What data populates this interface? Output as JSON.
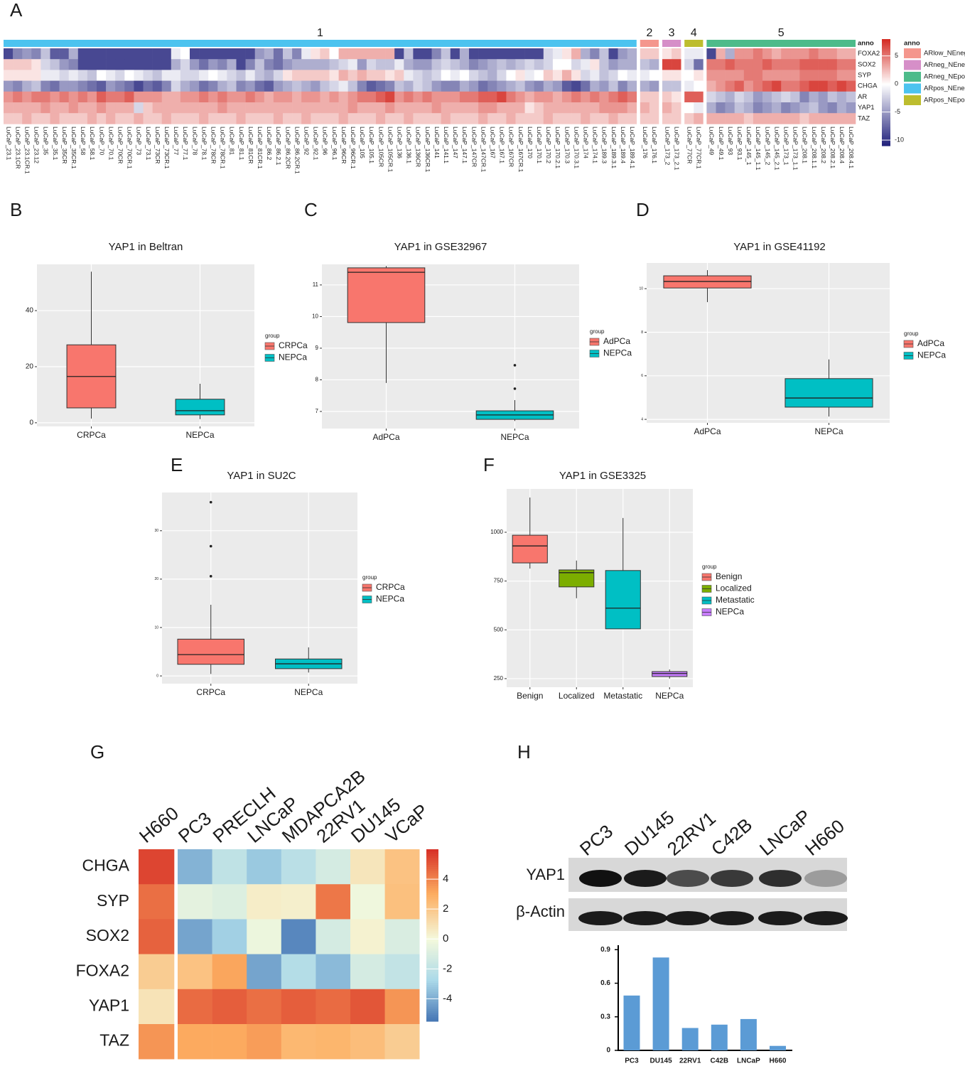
{
  "chart_data": [
    {
      "type": "heatmap",
      "panel": "A",
      "anno_label": "anno",
      "legend_title": "anno",
      "rows": [
        "FOXA2",
        "SOX2",
        "SYP",
        "CHGA",
        "AR",
        "YAP1",
        "TAZ"
      ],
      "legend": [
        {
          "name": "ARlow_NEneg",
          "color": "#f4968d"
        },
        {
          "name": "ARneg_NEneg",
          "color": "#d68fc8"
        },
        {
          "name": "ARneg_NEpos",
          "color": "#4dbb8a"
        },
        {
          "name": "ARpos_NEneg",
          "color": "#4cc3ef"
        },
        {
          "name": "ARpos_NEpos",
          "color": "#bdbd2e"
        }
      ],
      "groups": [
        {
          "label": "1",
          "anno": "ARpos_NEneg",
          "samples": [
            "LuCaP_23.1",
            "LuCaP_23.1CR",
            "LuCaP_23.1CR.1",
            "LuCaP_23.12",
            "LuCaP_35",
            "LuCaP_35.1",
            "LuCaP_35CR",
            "LuCaP_35CR.1",
            "LuCaP_58",
            "LuCaP_58.1",
            "LuCaP_70",
            "LuCaP_70.1",
            "LuCaP_70CR",
            "LuCaP_70CR.1",
            "LuCaP_73",
            "LuCaP_73.1",
            "LuCaP_73CR",
            "LuCaP_73CR.1",
            "LuCaP_77",
            "LuCaP_77.1",
            "LuCaP_78",
            "LuCaP_78.1",
            "LuCaP_78CR",
            "LuCaP_78CR.1",
            "LuCaP_81",
            "LuCaP_81.1",
            "LuCaP_81CR",
            "LuCaP_81CR.1",
            "LuCaP_86.2",
            "LuCaP_86.2.1",
            "LuCaP_86.2CR",
            "LuCaP_86.2CR.1",
            "LuCaP_92",
            "LuCaP_92.1",
            "LuCaP_96",
            "LuCaP_96.1",
            "LuCaP_96CR",
            "LuCaP_96CR.1",
            "LuCaP_105",
            "LuCaP_105.1",
            "LuCaP_105CR",
            "LuCaP_105CR.1",
            "LuCaP_136",
            "LuCaP_136.1",
            "LuCaP_136CR",
            "LuCaP_136CR.1",
            "LuCaP_141",
            "LuCaP_141.1",
            "LuCaP_147",
            "LuCaP_147.1",
            "LuCaP_147CR",
            "LuCaP_147CR.1",
            "LuCaP_167",
            "LuCaP_167.1",
            "LuCaP_167CR",
            "LuCaP_167CR.1",
            "LuCaP_170",
            "LuCaP_170.1",
            "LuCaP_170.2",
            "LuCaP_170.2.1",
            "LuCaP_170.3",
            "LuCaP_170.3.1",
            "LuCaP_174",
            "LuCaP_174.1",
            "LuCaP_189.3",
            "LuCaP_189.3.1",
            "LuCaP_189.4",
            "LuCaP_189.4.1"
          ]
        },
        {
          "label": "2",
          "anno": "ARlow_NEneg",
          "samples": [
            "LuCaP_176",
            "LuCaP_176.1"
          ]
        },
        {
          "label": "3",
          "anno": "ARneg_NEneg",
          "samples": [
            "LuCaP_173_2",
            "LuCaP_173_2.1"
          ]
        },
        {
          "label": "4",
          "anno": "ARpos_NEpos",
          "samples": [
            "LuCaP_77CR",
            "LuCaP_77CR.1"
          ]
        },
        {
          "label": "5",
          "anno": "ARneg_NEpos",
          "samples": [
            "LuCaP_49",
            "LuCaP_49.1",
            "LuCaP_93",
            "LuCaP_93.1",
            "LuCaP_145_1",
            "LuCaP_145_1.1",
            "LuCaP_145_2",
            "LuCaP_145_2.1",
            "LuCaP_173_1",
            "LuCaP_173_1.1",
            "LuCaP_208.1",
            "LuCaP_208.1.1",
            "LuCaP_208.2",
            "LuCaP_208.2.1",
            "LuCaP_208.4",
            "LuCaP_208.4.1"
          ]
        }
      ],
      "values": [
        [
          -9,
          -6,
          -5,
          -6,
          -3,
          -8,
          -8,
          -4,
          -9,
          -9,
          -9,
          -9,
          -9,
          -9,
          -9,
          -9,
          -9,
          -9,
          -1,
          0,
          -9,
          -9,
          -9,
          -9,
          -9,
          -9,
          -9,
          -5,
          -4,
          -7,
          -3,
          -6,
          -1,
          1,
          2,
          0,
          3,
          3,
          3,
          3,
          3,
          3,
          -9,
          -3,
          -9,
          -9,
          -6,
          -3,
          -9,
          -4,
          -9,
          -9,
          -9,
          -9,
          -9,
          -9,
          -9,
          -9,
          -2,
          -1,
          1,
          3,
          -4,
          -6,
          -3,
          -9,
          -5,
          -4,
          2,
          2,
          1,
          2,
          -1,
          -1,
          -9,
          3,
          -4,
          4,
          4,
          5,
          4,
          3,
          4,
          4,
          4,
          5,
          4,
          4,
          3,
          3
        ],
        [
          2,
          2,
          2,
          1,
          -2,
          -3,
          -5,
          -6,
          -9,
          -9,
          -9,
          -9,
          -9,
          -9,
          -9,
          -9,
          -9,
          -9,
          -4,
          -2,
          -5,
          -7,
          -5,
          -6,
          -4,
          -9,
          -6,
          -3,
          -6,
          -7,
          -5,
          -4,
          -4,
          -4,
          -4,
          -3,
          -2,
          -1,
          -5,
          -2,
          -3,
          -3,
          -1,
          -4,
          -5,
          -5,
          -3,
          -2,
          -3,
          -4,
          -6,
          -5,
          -4,
          -3,
          -4,
          -3,
          -2,
          -3,
          -2,
          0,
          0,
          -2,
          -1,
          1,
          -3,
          -5,
          -4,
          -4,
          -3,
          -4,
          7,
          7,
          -2,
          -7,
          5,
          5,
          6,
          5,
          5,
          5,
          6,
          5,
          5,
          5,
          6,
          6,
          6,
          6,
          5,
          5
        ],
        [
          1,
          1,
          1,
          1,
          -1,
          -1,
          -2,
          -1,
          -2,
          -3,
          0,
          -1,
          -2,
          0,
          -1,
          -2,
          -3,
          -1,
          -1,
          -2,
          -2,
          -1,
          0,
          -1,
          -2,
          -3,
          -1,
          -3,
          -4,
          -2,
          1,
          2,
          2,
          2,
          2,
          1,
          3,
          2,
          3,
          2,
          2,
          1,
          2,
          -1,
          -2,
          -3,
          -2,
          0,
          -1,
          0,
          -2,
          -3,
          -4,
          -2,
          0,
          1,
          -1,
          0,
          2,
          1,
          3,
          1,
          -2,
          -1,
          -3,
          -2,
          0,
          -1,
          -1,
          0,
          1,
          1,
          0,
          1,
          4,
          4,
          4,
          4,
          5,
          5,
          4,
          4,
          4,
          4,
          5,
          5,
          5,
          5,
          4,
          4
        ],
        [
          -5,
          -6,
          -4,
          -3,
          -6,
          -7,
          -5,
          -5,
          -6,
          -7,
          -8,
          -5,
          -6,
          -7,
          -9,
          -7,
          -8,
          -6,
          -2,
          -4,
          -5,
          -7,
          -6,
          -4,
          -3,
          -6,
          -5,
          -7,
          -8,
          -5,
          -4,
          -3,
          -4,
          -5,
          -3,
          -2,
          -1,
          -3,
          -6,
          -8,
          -7,
          -6,
          -3,
          -4,
          -2,
          -3,
          -5,
          -6,
          -6,
          -4,
          -5,
          -7,
          -6,
          -5,
          -4,
          -3,
          -5,
          -6,
          -4,
          -5,
          -8,
          -9,
          -7,
          -4,
          -5,
          -3,
          -6,
          -4,
          -4,
          -5,
          -3,
          -3,
          -1,
          0,
          3,
          4,
          5,
          6,
          4,
          5,
          6,
          7,
          5,
          5,
          6,
          7,
          7,
          6,
          7,
          6
        ],
        [
          4,
          5,
          4,
          5,
          5,
          4,
          5,
          4,
          5,
          4,
          6,
          5,
          5,
          6,
          4,
          4,
          4,
          3,
          3,
          4,
          4,
          5,
          4,
          5,
          4,
          4,
          5,
          4,
          3,
          4,
          4,
          3,
          4,
          4,
          3,
          4,
          3,
          4,
          5,
          5,
          6,
          7,
          4,
          5,
          4,
          5,
          4,
          4,
          4,
          5,
          5,
          6,
          6,
          7,
          5,
          4,
          3,
          4,
          4,
          3,
          4,
          5,
          4,
          5,
          4,
          5,
          6,
          5,
          2,
          2,
          2,
          1,
          6,
          6,
          -2,
          -3,
          -4,
          -2,
          -3,
          -5,
          -4,
          -3,
          -2,
          -3,
          -6,
          -4,
          -5,
          -3,
          -4,
          -3
        ],
        [
          3,
          3,
          3,
          3,
          4,
          3,
          3,
          4,
          3,
          3,
          4,
          3,
          3,
          3,
          -2,
          2,
          3,
          3,
          3,
          3,
          3,
          3,
          3,
          4,
          3,
          3,
          3,
          3,
          3,
          3,
          3,
          3,
          3,
          3,
          3,
          3,
          3,
          4,
          3,
          3,
          3,
          4,
          3,
          3,
          3,
          3,
          4,
          3,
          3,
          3,
          3,
          4,
          4,
          3,
          3,
          3,
          1,
          2,
          3,
          3,
          3,
          3,
          3,
          3,
          4,
          4,
          4,
          3,
          3,
          2,
          3,
          2,
          0,
          -1,
          -4,
          -6,
          -5,
          -3,
          -4,
          -6,
          -5,
          -4,
          -6,
          -5,
          -4,
          -3,
          -5,
          -6,
          -4,
          -5
        ],
        [
          2,
          2,
          3,
          2,
          2,
          3,
          2,
          2,
          2,
          3,
          2,
          3,
          2,
          2,
          3,
          2,
          2,
          3,
          2,
          2,
          2,
          3,
          2,
          2,
          2,
          3,
          2,
          2,
          2,
          3,
          2,
          2,
          3,
          2,
          2,
          2,
          3,
          2,
          2,
          2,
          3,
          2,
          2,
          3,
          2,
          2,
          2,
          3,
          2,
          2,
          2,
          3,
          2,
          2,
          3,
          2,
          2,
          2,
          3,
          2,
          2,
          2,
          3,
          2,
          2,
          3,
          2,
          2,
          2,
          2,
          2,
          2,
          2,
          3,
          3,
          3,
          3,
          3,
          2,
          3,
          3,
          3,
          3,
          3,
          2,
          3,
          3,
          3,
          3,
          3
        ]
      ],
      "clim": [
        -11,
        8
      ],
      "cticks": [
        5,
        0,
        -5,
        -10
      ],
      "colors": [
        "#1f1f7a",
        "#ffffff",
        "#d42a22"
      ]
    },
    {
      "type": "box",
      "panel": "B",
      "title": "YAP1 in Beltran",
      "legend_title": "group",
      "categories": [
        "CRPCa",
        "NEPCa"
      ],
      "colors": [
        "#f8766d",
        "#00bfc4"
      ],
      "boxes": [
        {
          "min": 1.5,
          "q1": 5.3,
          "median": 16.5,
          "q3": 27.8,
          "max": 53.9,
          "outliers": []
        },
        {
          "min": 1.3,
          "q1": 2.8,
          "median": 4.3,
          "q3": 8.4,
          "max": 13.9,
          "outliers": []
        }
      ],
      "ylim": [
        -1.3,
        56.5
      ],
      "yticks": [
        0,
        20,
        40
      ]
    },
    {
      "type": "box",
      "panel": "C",
      "title": "YAP1 in GSE32967",
      "legend_title": "group",
      "categories": [
        "AdPCa",
        "NEPCa"
      ],
      "colors": [
        "#f8766d",
        "#00bfc4"
      ],
      "boxes": [
        {
          "min": 7.9,
          "q1": 9.81,
          "median": 11.4,
          "q3": 11.54,
          "max": 11.6,
          "outliers": []
        },
        {
          "min": 6.7,
          "q1": 6.75,
          "median": 6.89,
          "q3": 7.02,
          "max": 7.36,
          "outliers": [
            8.46,
            7.72
          ]
        }
      ],
      "ylim": [
        6.46,
        11.65
      ],
      "yticks": [
        7,
        8,
        9,
        10,
        11
      ]
    },
    {
      "type": "box",
      "panel": "D",
      "title": "YAP1 in GSE41192",
      "legend_title": "group",
      "categories": [
        "AdPCa",
        "NEPCa"
      ],
      "colors": [
        "#f8766d",
        "#00bfc4"
      ],
      "boxes": [
        {
          "min": 9.38,
          "q1": 10.03,
          "median": 10.33,
          "q3": 10.59,
          "max": 10.85,
          "outliers": []
        },
        {
          "min": 4.13,
          "q1": 4.56,
          "median": 4.98,
          "q3": 5.87,
          "max": 6.75,
          "outliers": []
        }
      ],
      "ylim": [
        3.84,
        11.18
      ],
      "yticks": [
        4,
        6,
        8,
        10
      ]
    },
    {
      "type": "box",
      "panel": "E",
      "title": "YAP1 in SU2C",
      "legend_title": "group",
      "categories": [
        "CRPCa",
        "NEPCa"
      ],
      "colors": [
        "#f8766d",
        "#00bfc4"
      ],
      "boxes": [
        {
          "min": 0.4,
          "q1": 2.4,
          "median": 4.4,
          "q3": 7.6,
          "max": 14.7,
          "outliers": [
            35.9,
            26.8,
            20.6
          ]
        },
        {
          "min": 0.7,
          "q1": 1.5,
          "median": 2.5,
          "q3": 3.5,
          "max": 5.9,
          "outliers": []
        }
      ],
      "ylim": [
        -1.6,
        37.9
      ],
      "yticks": [
        0,
        10,
        20,
        30
      ]
    },
    {
      "type": "box",
      "panel": "F",
      "title": "YAP1 in GSE3325",
      "legend_title": "group",
      "categories": [
        "Benign",
        "Localized",
        "Metastatic",
        "NEPCa"
      ],
      "colors": [
        "#f8766d",
        "#7cae00",
        "#00bfc4",
        "#c77cff"
      ],
      "boxes": [
        {
          "min": 814,
          "q1": 843,
          "median": 930,
          "q3": 985,
          "max": 1178,
          "outliers": []
        },
        {
          "min": 662,
          "q1": 720,
          "median": 793,
          "q3": 807,
          "max": 855,
          "outliers": []
        },
        {
          "min": 505,
          "q1": 505,
          "median": 611,
          "q3": 804,
          "max": 1073,
          "outliers": []
        },
        {
          "min": 250,
          "q1": 261,
          "median": 276,
          "q3": 286,
          "max": 297,
          "outliers": []
        }
      ],
      "ylim": [
        206,
        1222
      ],
      "yticks": [
        250,
        500,
        750,
        1000
      ]
    },
    {
      "type": "heatmap",
      "panel": "G",
      "columns": [
        "H660",
        "PC3",
        "PRECLH",
        "LNCaP",
        "MDAPCA2B",
        "22RV1",
        "DU145",
        "VCaP"
      ],
      "rows": [
        "CHGA",
        "SYP",
        "SOX2",
        "FOXA2",
        "YAP1",
        "TAZ"
      ],
      "values": [
        [
          5.5,
          -3.8,
          -2,
          -3.2,
          -2.2,
          -1.2,
          0.8,
          2.2
        ],
        [
          4.5,
          -0.6,
          -0.9,
          0.5,
          0.4,
          4.3,
          -0.2,
          2.3
        ],
        [
          4.8,
          -4.2,
          -3,
          -0.3,
          -5,
          -1.2,
          0.3,
          -1
        ],
        [
          1.8,
          2.2,
          3.2,
          -4.2,
          -2.4,
          -3.6,
          -1.2,
          -1.9
        ],
        [
          0.9,
          4.6,
          4.9,
          4.5,
          4.9,
          4.6,
          5.1,
          3.6
        ],
        [
          3.6,
          3.1,
          3.1,
          3.4,
          2.6,
          2.7,
          2.4,
          1.8
        ]
      ],
      "clim": [
        -5.5,
        6
      ],
      "cticks": [
        4,
        2,
        0,
        -2,
        -4
      ],
      "colors": [
        "#4575b4",
        "#abd9e9",
        "#f4f9dc",
        "#fdae61",
        "#d73027"
      ]
    },
    {
      "type": "bar",
      "panel": "H",
      "blot_rows": [
        "YAP1",
        "β-Actin"
      ],
      "categories": [
        "PC3",
        "DU145",
        "22RV1",
        "C42B",
        "LNCaP",
        "H660"
      ],
      "values": [
        0.49,
        0.83,
        0.2,
        0.23,
        0.28,
        0.04
      ],
      "color": "#5b9bd5",
      "ylim": [
        0,
        0.94
      ],
      "yticks": [
        0,
        0.3,
        0.6,
        0.9
      ]
    }
  ]
}
